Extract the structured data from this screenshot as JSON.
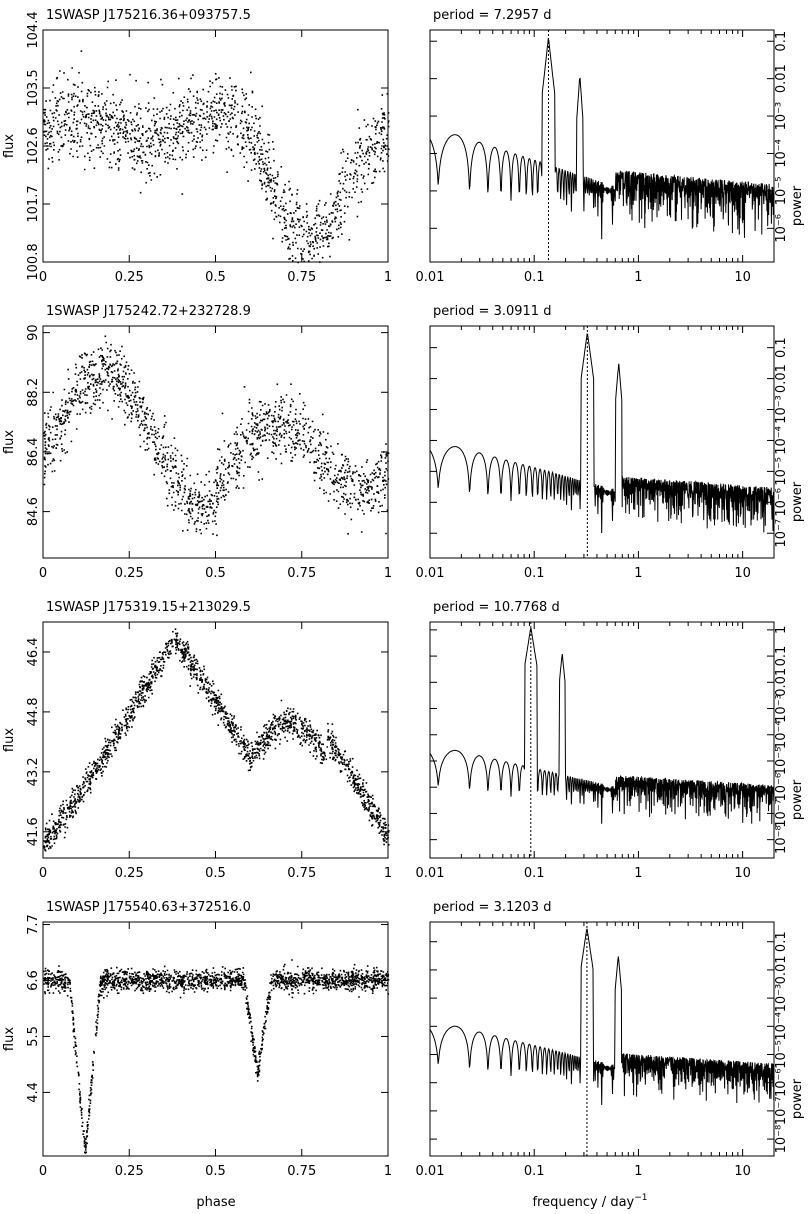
{
  "figure": {
    "xlabel_left": "phase",
    "xlabel_right": "frequency / day",
    "xlabel_right_sup": "−1",
    "ylabel_left": "flux",
    "ylabel_right": "power",
    "period_prefix": "period =",
    "period_unit": "d"
  },
  "chart_data": [
    {
      "type": "scatter",
      "panel": "light-curve-1",
      "title": "1SWASP J175216.36+093757.5",
      "xlabel": "phase",
      "ylabel": "flux",
      "xlim": [
        0,
        1
      ],
      "ylim": [
        100.8,
        104.4
      ],
      "xticks": [
        "0",
        "0.25",
        "0.5",
        "0.75",
        "1"
      ],
      "yticks": [
        "100.8",
        "101.7",
        "102.6",
        "103.5",
        "104.4"
      ],
      "ytick_values": [
        100.8,
        101.7,
        102.6,
        103.5,
        104.4
      ],
      "shape": "noisy-quasi-sinusoid",
      "mean": 102.7,
      "amplitude": 0.6,
      "scatter": 0.55,
      "min_phase": 0.75,
      "n_points": 1500
    },
    {
      "type": "line",
      "panel": "periodogram-1",
      "period": "7.2957",
      "xlabel": "frequency / day⁻¹",
      "ylabel": "power",
      "xscale": "log",
      "yscale": "log",
      "xlim": [
        0.01,
        20
      ],
      "xticks": [
        "0.01",
        "0.1",
        "1",
        "10"
      ],
      "yticks": [
        "10⁻⁶",
        "10⁻⁵",
        "10⁻⁴",
        "10⁻³",
        "0.01",
        "0.1"
      ],
      "ylim_exp": [
        -6.9,
        -0.7
      ],
      "peak_frequency": 0.137,
      "harmonic_frequency": 0.274,
      "noise_floor_exp": -4.5
    },
    {
      "type": "scatter",
      "panel": "light-curve-2",
      "title": "1SWASP J175242.72+232728.9",
      "xlabel": "phase",
      "ylabel": "flux",
      "xlim": [
        0,
        1
      ],
      "ylim": [
        83.2,
        90.2
      ],
      "xticks": [
        "0",
        "0.25",
        "0.5",
        "0.75",
        "1"
      ],
      "yticks": [
        "84.6",
        "86.4",
        "88.2",
        "90"
      ],
      "ytick_values": [
        84.6,
        86.4,
        88.2,
        90.0
      ],
      "shape": "double-hump",
      "mean": 86.4,
      "amplitude": 2.3,
      "scatter": 0.9,
      "min_phase": 0.5,
      "n_points": 1500
    },
    {
      "type": "line",
      "panel": "periodogram-2",
      "period": "3.0911",
      "xlabel": "frequency / day⁻¹",
      "ylabel": "power",
      "xscale": "log",
      "yscale": "log",
      "xlim": [
        0.01,
        20
      ],
      "xticks": [
        "0.01",
        "0.1",
        "1",
        "10"
      ],
      "yticks": [
        "10⁻⁷",
        "10⁻⁶",
        "10⁻⁵",
        "10⁻⁴",
        "10⁻³",
        "0.01",
        "0.1"
      ],
      "ylim_exp": [
        -7.8,
        -0.3
      ],
      "peak_frequency": 0.3235,
      "harmonic_frequency": 0.647,
      "noise_floor_exp": -5.2
    },
    {
      "type": "scatter",
      "panel": "light-curve-3",
      "title": "1SWASP J175319.15+213029.5",
      "xlabel": "phase",
      "ylabel": "flux",
      "xlim": [
        0,
        1
      ],
      "ylim": [
        40.9,
        47.2
      ],
      "xticks": [
        "0",
        "0.25",
        "0.5",
        "0.75",
        "1"
      ],
      "yticks": [
        "41.6",
        "43.2",
        "44.8",
        "46.4"
      ],
      "ytick_values": [
        41.6,
        43.2,
        44.8,
        46.4
      ],
      "shape": "asymmetric-hump",
      "mean": 44.0,
      "amplitude": 2.4,
      "scatter": 0.35,
      "min_phase": 0.05,
      "n_points": 1800
    },
    {
      "type": "line",
      "panel": "periodogram-3",
      "period": "10.7768",
      "xlabel": "frequency / day⁻¹",
      "ylabel": "power",
      "xscale": "log",
      "yscale": "log",
      "xlim": [
        0.01,
        20
      ],
      "xticks": [
        "0.01",
        "0.1",
        "1",
        "10"
      ],
      "yticks": [
        "10⁻⁸",
        "10⁻⁷",
        "10⁻⁶",
        "10⁻⁵",
        "10⁻⁴",
        "10⁻³",
        "0.01",
        "0.1",
        "1"
      ],
      "ylim_exp": [
        -8.7,
        0.3
      ],
      "peak_frequency": 0.0928,
      "harmonic_frequency": 0.1856,
      "noise_floor_exp": -5.6
    },
    {
      "type": "scatter",
      "panel": "light-curve-4",
      "title": "1SWASP J175540.63+372516.0",
      "xlabel": "phase",
      "ylabel": "flux",
      "xlim": [
        0,
        1
      ],
      "ylim": [
        3.15,
        7.75
      ],
      "xticks": [
        "0",
        "0.25",
        "0.5",
        "0.75",
        "1"
      ],
      "yticks": [
        "4.4",
        "5.5",
        "6.6",
        "7.7"
      ],
      "ytick_values": [
        4.4,
        5.5,
        6.6,
        7.7
      ],
      "shape": "eclipsing-binary",
      "mean": 6.62,
      "primary_eclipse_phase": 0.12,
      "primary_eclipse_depth": 3.4,
      "secondary_eclipse_phase": 0.62,
      "secondary_eclipse_depth": 1.8,
      "scatter": 0.18,
      "n_points": 2000
    },
    {
      "type": "line",
      "panel": "periodogram-4",
      "period": "3.1203",
      "xlabel": "frequency / day⁻¹",
      "ylabel": "power",
      "xscale": "log",
      "yscale": "log",
      "xlim": [
        0.01,
        20
      ],
      "xticks": [
        "0.01",
        "0.1",
        "1",
        "10"
      ],
      "yticks": [
        "10⁻⁸",
        "10⁻⁷",
        "10⁻⁶",
        "10⁻⁵",
        "10⁻⁴",
        "10⁻³",
        "0.01",
        "0.1"
      ],
      "ylim_exp": [
        -8.6,
        -0.3
      ],
      "peak_frequency": 0.3205,
      "harmonic_frequency": 0.641,
      "noise_floor_exp": -5.0
    }
  ]
}
